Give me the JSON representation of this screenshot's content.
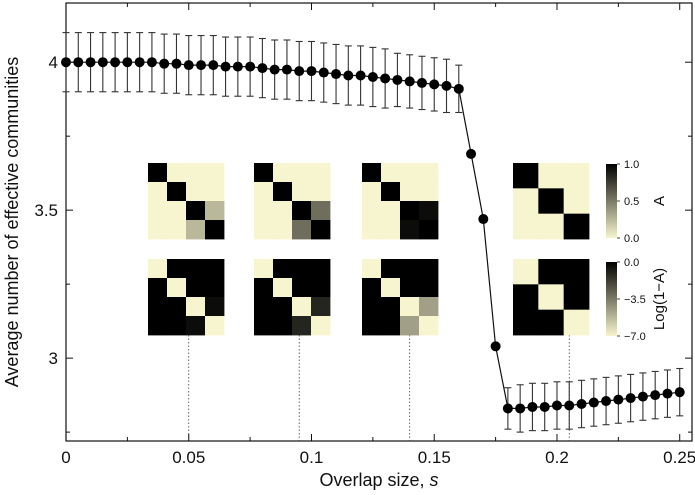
{
  "chart_data": {
    "type": "scatter",
    "title": "",
    "xlabel": "Overlap size, ",
    "xlabel_var": "s",
    "ylabel": "Average number of effective communities",
    "xlim": [
      0,
      0.255
    ],
    "ylim": [
      2.72,
      4.2
    ],
    "grid": false,
    "x_ticks": [
      "0",
      "0.05",
      "0.1",
      "0.15",
      "0.2",
      "0.25"
    ],
    "y_ticks": [
      "3",
      "3.5",
      "4"
    ],
    "series": [
      {
        "marker": "circle",
        "color": "#000000",
        "x": [
          0.0,
          0.005,
          0.01,
          0.015,
          0.02,
          0.025,
          0.03,
          0.035,
          0.04,
          0.045,
          0.05,
          0.055,
          0.06,
          0.065,
          0.07,
          0.075,
          0.08,
          0.085,
          0.09,
          0.095,
          0.1,
          0.105,
          0.11,
          0.115,
          0.12,
          0.125,
          0.13,
          0.135,
          0.14,
          0.145,
          0.15,
          0.155,
          0.16,
          0.165,
          0.17,
          0.175,
          0.18,
          0.185,
          0.19,
          0.195,
          0.2,
          0.205,
          0.21,
          0.215,
          0.22,
          0.225,
          0.23,
          0.235,
          0.24,
          0.245,
          0.25
        ],
        "y": [
          4.0,
          4.0,
          4.0,
          4.0,
          4.0,
          4.0,
          4.0,
          4.0,
          3.995,
          3.995,
          3.99,
          3.99,
          3.99,
          3.985,
          3.985,
          3.985,
          3.98,
          3.975,
          3.975,
          3.97,
          3.97,
          3.965,
          3.96,
          3.955,
          3.955,
          3.95,
          3.945,
          3.94,
          3.935,
          3.93,
          3.925,
          3.92,
          3.91,
          3.69,
          3.47,
          3.04,
          2.83,
          2.83,
          2.835,
          2.835,
          2.84,
          2.84,
          2.845,
          2.85,
          2.855,
          2.86,
          2.865,
          2.87,
          2.875,
          2.88,
          2.885
        ],
        "err": [
          0.1,
          0.1,
          0.1,
          0.1,
          0.1,
          0.1,
          0.1,
          0.1,
          0.1,
          0.1,
          0.1,
          0.1,
          0.1,
          0.1,
          0.1,
          0.1,
          0.1,
          0.1,
          0.1,
          0.1,
          0.1,
          0.1,
          0.1,
          0.1,
          0.1,
          0.1,
          0.1,
          0.09,
          0.09,
          0.09,
          0.09,
          0.09,
          0.08,
          0.02,
          0.02,
          0.02,
          0.07,
          0.08,
          0.08,
          0.08,
          0.08,
          0.08,
          0.08,
          0.08,
          0.08,
          0.08,
          0.08,
          0.08,
          0.08,
          0.08,
          0.08
        ]
      }
    ],
    "insets": [
      {
        "s": 0.05,
        "top_matrix": [
          [
            1.0,
            0.0,
            0.0,
            0.0
          ],
          [
            0.0,
            1.0,
            0.0,
            0.0
          ],
          [
            0.0,
            0.0,
            1.0,
            0.25
          ],
          [
            0.0,
            0.0,
            0.25,
            1.0
          ]
        ],
        "bottom_matrix": [
          [
            0.0,
            1.0,
            1.0,
            1.0
          ],
          [
            1.0,
            0.0,
            1.0,
            1.0
          ],
          [
            1.0,
            1.0,
            0.0,
            0.95
          ],
          [
            1.0,
            1.0,
            0.95,
            0.0
          ]
        ]
      },
      {
        "s": 0.095,
        "top_matrix": [
          [
            1.0,
            0.0,
            0.0,
            0.0
          ],
          [
            0.0,
            1.0,
            0.0,
            0.0
          ],
          [
            0.0,
            0.0,
            1.0,
            0.55
          ],
          [
            0.0,
            0.0,
            0.55,
            1.0
          ]
        ],
        "bottom_matrix": [
          [
            0.0,
            1.0,
            1.0,
            1.0
          ],
          [
            1.0,
            0.0,
            1.0,
            1.0
          ],
          [
            1.0,
            1.0,
            0.0,
            0.85
          ],
          [
            1.0,
            1.0,
            0.85,
            0.0
          ]
        ]
      },
      {
        "s": 0.14,
        "top_matrix": [
          [
            1.0,
            0.0,
            0.0,
            0.0
          ],
          [
            0.0,
            1.0,
            0.0,
            0.0
          ],
          [
            0.0,
            0.0,
            1.0,
            0.95
          ],
          [
            0.0,
            0.0,
            0.95,
            1.0
          ]
        ],
        "bottom_matrix": [
          [
            0.0,
            1.0,
            1.0,
            1.0
          ],
          [
            1.0,
            0.0,
            1.0,
            1.0
          ],
          [
            1.0,
            1.0,
            0.0,
            0.35
          ],
          [
            1.0,
            1.0,
            0.35,
            0.0
          ]
        ]
      },
      {
        "s": 0.205,
        "top_matrix": [
          [
            1.0,
            0.0,
            0.0
          ],
          [
            0.0,
            1.0,
            0.0
          ],
          [
            0.0,
            0.0,
            1.0
          ]
        ],
        "bottom_matrix": [
          [
            0.0,
            1.0,
            1.0
          ],
          [
            1.0,
            0.0,
            1.0
          ],
          [
            1.0,
            1.0,
            0.0
          ]
        ]
      }
    ],
    "colorbars": [
      {
        "label": "A",
        "ticks": [
          "1.0",
          "0.5",
          "0.0"
        ]
      },
      {
        "label": "Log(1−A)",
        "ticks": [
          "0.0",
          "−3.5",
          "−7.0"
        ]
      }
    ],
    "colors": {
      "low": "#f7f5cf",
      "high": "#000000"
    }
  }
}
